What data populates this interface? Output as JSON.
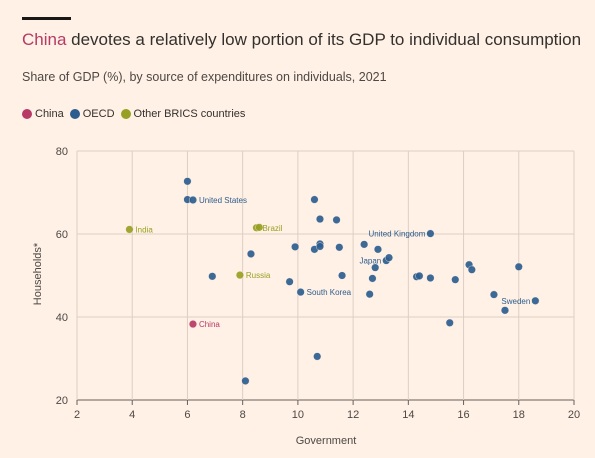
{
  "title_highlight": "China",
  "title_rest": " devotes a relatively low portion of its GDP to individual consumption",
  "subtitle": "Share of GDP (%), by source of expenditures on individuals, 2021",
  "colors": {
    "China": "#B63A65",
    "OECD": "#2D5D8F",
    "Other BRICS countries": "#97A022",
    "grid": "#DCCFC3",
    "axis": "#66605C"
  },
  "legend": [
    "China",
    "OECD",
    "Other BRICS countries"
  ],
  "chart_data": {
    "type": "scatter",
    "xlabel": "Government",
    "ylabel": "Households*",
    "xlim": [
      2,
      20
    ],
    "ylim": [
      20,
      80
    ],
    "xticks": [
      2,
      4,
      6,
      8,
      10,
      12,
      14,
      16,
      18,
      20
    ],
    "yticks": [
      20,
      40,
      60,
      80
    ],
    "points": [
      {
        "x": 6.2,
        "y": 38.3,
        "group": "China",
        "label": "China"
      },
      {
        "x": 3.9,
        "y": 61.1,
        "group": "Other BRICS countries",
        "label": "India"
      },
      {
        "x": 7.9,
        "y": 50.1,
        "group": "Other BRICS countries",
        "label": "Russia"
      },
      {
        "x": 8.5,
        "y": 61.5,
        "group": "Other BRICS countries",
        "label": "Brazil"
      },
      {
        "x": 8.6,
        "y": 61.6,
        "group": "Other BRICS countries",
        "label": ""
      },
      {
        "x": 6.0,
        "y": 72.7,
        "group": "OECD",
        "label": ""
      },
      {
        "x": 6.0,
        "y": 68.3,
        "group": "OECD",
        "label": ""
      },
      {
        "x": 6.2,
        "y": 68.2,
        "group": "OECD",
        "label": "United States"
      },
      {
        "x": 6.9,
        "y": 49.8,
        "group": "OECD",
        "label": ""
      },
      {
        "x": 8.1,
        "y": 24.6,
        "group": "OECD",
        "label": ""
      },
      {
        "x": 8.3,
        "y": 55.2,
        "group": "OECD",
        "label": ""
      },
      {
        "x": 9.7,
        "y": 48.5,
        "group": "OECD",
        "label": ""
      },
      {
        "x": 9.9,
        "y": 56.9,
        "group": "OECD",
        "label": ""
      },
      {
        "x": 10.1,
        "y": 46.0,
        "group": "OECD",
        "label": "South Korea"
      },
      {
        "x": 10.6,
        "y": 68.3,
        "group": "OECD",
        "label": ""
      },
      {
        "x": 10.6,
        "y": 56.3,
        "group": "OECD",
        "label": ""
      },
      {
        "x": 10.7,
        "y": 30.5,
        "group": "OECD",
        "label": ""
      },
      {
        "x": 10.8,
        "y": 63.6,
        "group": "OECD",
        "label": ""
      },
      {
        "x": 10.8,
        "y": 57.6,
        "group": "OECD",
        "label": ""
      },
      {
        "x": 10.8,
        "y": 57.0,
        "group": "OECD",
        "label": ""
      },
      {
        "x": 11.4,
        "y": 63.4,
        "group": "OECD",
        "label": ""
      },
      {
        "x": 11.5,
        "y": 56.8,
        "group": "OECD",
        "label": ""
      },
      {
        "x": 11.6,
        "y": 50.0,
        "group": "OECD",
        "label": ""
      },
      {
        "x": 12.4,
        "y": 57.5,
        "group": "OECD",
        "label": ""
      },
      {
        "x": 12.6,
        "y": 45.5,
        "group": "OECD",
        "label": ""
      },
      {
        "x": 12.7,
        "y": 49.3,
        "group": "OECD",
        "label": ""
      },
      {
        "x": 12.8,
        "y": 51.9,
        "group": "OECD",
        "label": ""
      },
      {
        "x": 12.9,
        "y": 56.3,
        "group": "OECD",
        "label": ""
      },
      {
        "x": 13.2,
        "y": 53.6,
        "group": "OECD",
        "label": "Japan"
      },
      {
        "x": 13.3,
        "y": 54.3,
        "group": "OECD",
        "label": ""
      },
      {
        "x": 14.3,
        "y": 49.7,
        "group": "OECD",
        "label": ""
      },
      {
        "x": 14.4,
        "y": 49.9,
        "group": "OECD",
        "label": ""
      },
      {
        "x": 14.8,
        "y": 49.4,
        "group": "OECD",
        "label": ""
      },
      {
        "x": 14.8,
        "y": 60.1,
        "group": "OECD",
        "label": "United Kingdom"
      },
      {
        "x": 15.5,
        "y": 38.6,
        "group": "OECD",
        "label": ""
      },
      {
        "x": 15.7,
        "y": 49.0,
        "group": "OECD",
        "label": ""
      },
      {
        "x": 16.2,
        "y": 52.6,
        "group": "OECD",
        "label": ""
      },
      {
        "x": 16.3,
        "y": 51.4,
        "group": "OECD",
        "label": ""
      },
      {
        "x": 17.1,
        "y": 45.4,
        "group": "OECD",
        "label": ""
      },
      {
        "x": 17.5,
        "y": 41.6,
        "group": "OECD",
        "label": ""
      },
      {
        "x": 18.0,
        "y": 52.1,
        "group": "OECD",
        "label": ""
      },
      {
        "x": 18.6,
        "y": 43.9,
        "group": "OECD",
        "label": "Sweden"
      }
    ]
  }
}
